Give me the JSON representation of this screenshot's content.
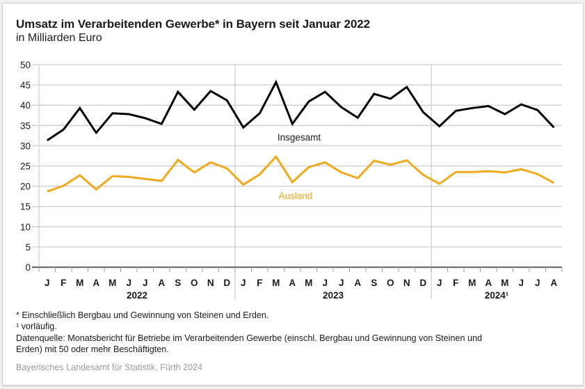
{
  "header": {
    "title": "Umsatz im Verarbeitenden Gewerbe* in Bayern seit Januar 2022",
    "subtitle": "in Milliarden Euro"
  },
  "footnotes": {
    "asterisk": "* Einschließlich Bergbau und Gewinnung von Steinen und Erden.",
    "preliminary": "¹ vorläufig.",
    "source_line1": "Datenquelle: Monatsbericht für Betriebe im Verarbeitenden Gewerbe (einschl. Bergbau und Gewinnung von Steinen und",
    "source_line2": "Erden) mit 50 oder mehr Beschäftigten.",
    "credit": "Bayerisches Landesamt für Statistik, Fürth 2024"
  },
  "chart_data": {
    "type": "line",
    "title": "Umsatz im Verarbeitenden Gewerbe* in Bayern seit Januar 2022",
    "subtitle": "in Milliarden Euro",
    "xlabel": "",
    "ylabel": "",
    "ylim": [
      0,
      50
    ],
    "yticks": [
      "0",
      "5",
      "10",
      "15",
      "20",
      "25",
      "30",
      "35",
      "40",
      "45",
      "50"
    ],
    "grid": true,
    "categories": [
      "J",
      "F",
      "M",
      "A",
      "M",
      "J",
      "J",
      "A",
      "S",
      "O",
      "N",
      "D",
      "J",
      "F",
      "M",
      "A",
      "M",
      "J",
      "J",
      "A",
      "S",
      "O",
      "N",
      "D",
      "J",
      "F",
      "M",
      "A",
      "M",
      "J",
      "J",
      "A"
    ],
    "year_groups": [
      {
        "label": "2022",
        "count": 12
      },
      {
        "label": "2023",
        "count": 12
      },
      {
        "label": "2024¹",
        "count": 8
      }
    ],
    "series": [
      {
        "name": "Insgesamt",
        "color": "#000000",
        "values": [
          31.3,
          34.0,
          39.3,
          33.2,
          38.0,
          37.8,
          36.8,
          35.4,
          43.3,
          38.9,
          43.5,
          41.2,
          34.5,
          38.0,
          45.7,
          35.4,
          40.9,
          43.3,
          39.5,
          36.9,
          42.8,
          41.6,
          44.5,
          38.3,
          34.8,
          38.6,
          39.3,
          39.8,
          37.8,
          40.2,
          38.8,
          34.5
        ]
      },
      {
        "name": "Ausland",
        "color": "#f0a81c",
        "values": [
          18.7,
          20.1,
          22.7,
          19.2,
          22.5,
          22.3,
          21.8,
          21.3,
          26.5,
          23.4,
          25.9,
          24.4,
          20.4,
          22.9,
          27.3,
          21.0,
          24.7,
          25.9,
          23.4,
          22.0,
          26.3,
          25.3,
          26.4,
          22.8,
          20.6,
          23.5,
          23.5,
          23.7,
          23.4,
          24.2,
          23.0,
          20.8
        ]
      }
    ],
    "annotations": [
      {
        "text": "Insgesamt",
        "series": "Insgesamt",
        "placement": "below line, 2023 Apr–Jun"
      },
      {
        "text": "Ausland",
        "series": "Ausland",
        "placement": "below line, 2023 Apr–Jun"
      }
    ]
  }
}
